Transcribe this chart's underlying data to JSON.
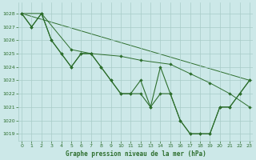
{
  "xlabel": "Graphe pression niveau de la mer (hPa)",
  "background_color": "#cce8e8",
  "grid_color": "#a8ccc8",
  "line_color": "#2d6e2d",
  "ylim": [
    1018.5,
    1028.8
  ],
  "xlim": [
    -0.3,
    23.3
  ],
  "yticks": [
    1019,
    1020,
    1021,
    1022,
    1023,
    1024,
    1025,
    1026,
    1027,
    1028
  ],
  "xticks": [
    0,
    1,
    2,
    3,
    4,
    5,
    6,
    7,
    8,
    9,
    10,
    11,
    12,
    13,
    14,
    15,
    16,
    17,
    18,
    19,
    20,
    21,
    22,
    23
  ],
  "line1_x": [
    0,
    1,
    2,
    3,
    4,
    5,
    6,
    7,
    8,
    9,
    10,
    11,
    12,
    13,
    14,
    15,
    16,
    17,
    18,
    19,
    20,
    21,
    22,
    23
  ],
  "line1_y": [
    1028,
    1027,
    1028,
    1026,
    1025,
    1024,
    1025,
    1025,
    1024,
    1023,
    1022,
    1022,
    1023,
    1021,
    1024,
    1022,
    1020,
    1019,
    1019,
    1019,
    1021,
    1021,
    1022,
    1023
  ],
  "line2_x": [
    0,
    1,
    2,
    3,
    4,
    5,
    6,
    7,
    8,
    9,
    10,
    11,
    12,
    13,
    14,
    15,
    16,
    17,
    18,
    19,
    20,
    21,
    22,
    23
  ],
  "line2_y": [
    1028,
    1027,
    1028,
    1026,
    1025,
    1024,
    1025,
    1025,
    1024,
    1023,
    1022,
    1022,
    1022,
    1021,
    1022,
    1022,
    1020,
    1019,
    1019,
    1019,
    1021,
    1021,
    1022,
    1023
  ],
  "line3_x": [
    0,
    2,
    5,
    7,
    10,
    12,
    15,
    17,
    19,
    21,
    23
  ],
  "line3_y": [
    1028,
    1028,
    1025.3,
    1025.0,
    1024.8,
    1024.5,
    1024.2,
    1023.5,
    1022.8,
    1022.0,
    1021.0
  ],
  "line4_x": [
    0,
    23
  ],
  "line4_y": [
    1028,
    1023
  ]
}
